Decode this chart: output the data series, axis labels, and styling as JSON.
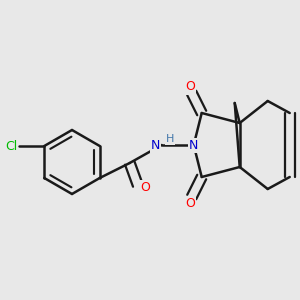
{
  "background_color": "#e8e8e8",
  "bond_color": "#1a1a1a",
  "bond_width": 1.8,
  "atoms": {
    "Cl": {
      "color": "#00bb00",
      "fontsize": 9
    },
    "O": {
      "color": "#ff0000",
      "fontsize": 9
    },
    "N": {
      "color": "#0000cc",
      "fontsize": 9
    },
    "H": {
      "color": "#4477aa",
      "fontsize": 8
    }
  },
  "figsize": [
    3.0,
    3.0
  ],
  "dpi": 100,
  "xlim": [
    0.0,
    3.0
  ],
  "ylim": [
    0.0,
    3.0
  ]
}
